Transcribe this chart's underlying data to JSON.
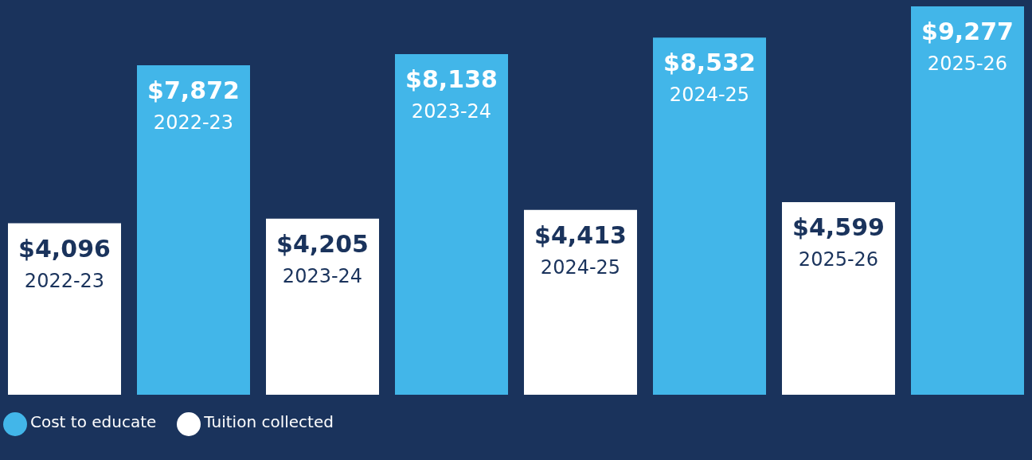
{
  "chart_data": {
    "type": "bar",
    "categories": [
      "2022-23",
      "2023-24",
      "2024-25",
      "2025-26"
    ],
    "series": [
      {
        "name": "Tuition collected",
        "color": "#ffffff",
        "values": [
          4096,
          4205,
          4413,
          4599
        ],
        "value_labels": [
          "$4,096",
          "$4,205",
          "$4,413",
          "$4,599"
        ]
      },
      {
        "name": "Cost to educate",
        "color": "#42b6e9",
        "values": [
          7872,
          8138,
          8532,
          9277
        ],
        "value_labels": [
          "$7,872",
          "$8,138",
          "$8,532",
          "$9,277"
        ]
      }
    ],
    "legend": "bottom left"
  }
}
